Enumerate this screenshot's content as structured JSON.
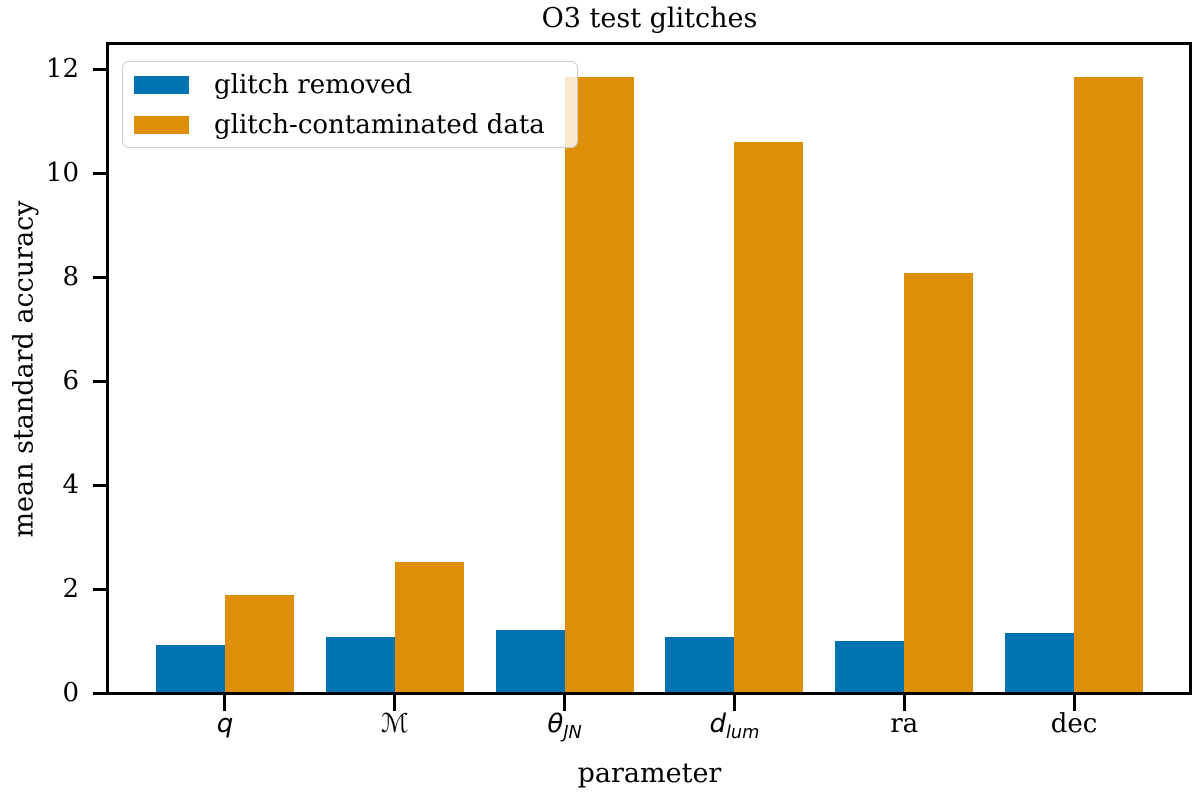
{
  "chart_data": {
    "type": "bar",
    "title": "O3 test glitches",
    "xlabel": "parameter",
    "ylabel": "mean standard accuracy",
    "categories": [
      {
        "base": "q",
        "sub": "",
        "math": true
      },
      {
        "base": "ℳ",
        "sub": "",
        "math": true
      },
      {
        "base": "θ",
        "sub": "JN",
        "math": true
      },
      {
        "base": "d",
        "sub": "lum",
        "math": true
      },
      {
        "base": "ra",
        "sub": "",
        "math": false
      },
      {
        "base": "dec",
        "sub": "",
        "math": false
      }
    ],
    "series": [
      {
        "name": "glitch removed",
        "color": "#0173b2",
        "values": [
          0.93,
          1.08,
          1.21,
          1.07,
          1.0,
          1.16
        ]
      },
      {
        "name": "glitch-contaminated data",
        "color": "#de8f05",
        "values": [
          1.89,
          2.52,
          11.85,
          10.6,
          8.09,
          11.85
        ]
      }
    ],
    "yticks": [
      0,
      2,
      4,
      6,
      8,
      10,
      12
    ],
    "ylim": [
      0,
      12.42
    ],
    "xlim": [
      -0.68,
      5.68
    ],
    "bar_width": 0.405,
    "legend_position": "upper left",
    "grid": false,
    "axis_color": "#000000",
    "background_color": "#ffffff"
  }
}
